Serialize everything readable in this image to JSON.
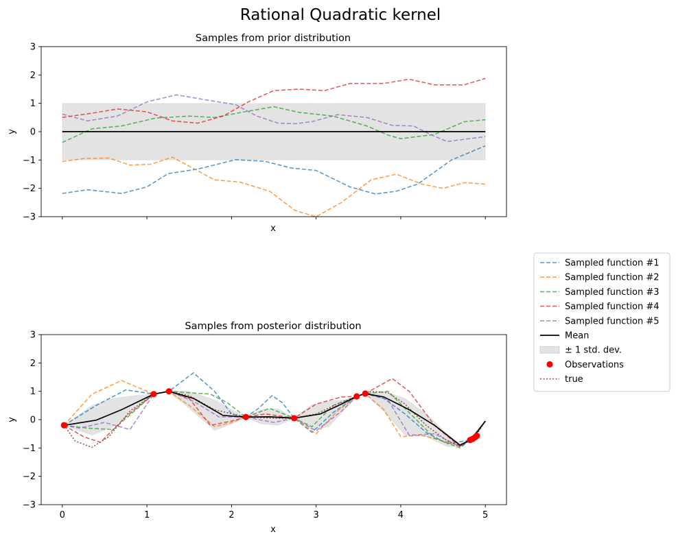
{
  "figure": {
    "suptitle": "Rational Quadratic kernel"
  },
  "legend": {
    "placement": "right-middle",
    "entries": [
      {
        "label": "Sampled function #1",
        "kind": "dashed",
        "color": "#1f77b4"
      },
      {
        "label": "Sampled function #2",
        "kind": "dashed",
        "color": "#ff7f0e"
      },
      {
        "label": "Sampled function #3",
        "kind": "dashed",
        "color": "#2ca02c"
      },
      {
        "label": "Sampled function #4",
        "kind": "dashed",
        "color": "#d62728"
      },
      {
        "label": "Sampled function #5",
        "kind": "dashed",
        "color": "#9467bd"
      },
      {
        "label": "Mean",
        "kind": "solid",
        "color": "#000000"
      },
      {
        "label": "± 1 std. dev.",
        "kind": "band",
        "color": "#bbbbbb"
      },
      {
        "label": "Observations",
        "kind": "dot",
        "color": "#ff0000"
      },
      {
        "label": "true",
        "kind": "dotted",
        "color": "#8c564b"
      }
    ]
  },
  "chart_data": [
    {
      "type": "line",
      "title": "Samples from prior distribution",
      "xlabel": "x",
      "ylabel": "y",
      "xlim": [
        -0.25,
        5.25
      ],
      "ylim": [
        -3,
        3
      ],
      "xticks": [
        0,
        1,
        2,
        3,
        4,
        5
      ],
      "xticklabels_visible": false,
      "yticks": [
        -3,
        -2,
        -1,
        0,
        1,
        2,
        3
      ],
      "grid": false,
      "mean": {
        "x": [
          0,
          5
        ],
        "y": [
          0,
          0
        ]
      },
      "std_band": {
        "x": [
          0,
          5
        ],
        "lower": [
          -1,
          -1
        ],
        "upper": [
          1,
          1
        ]
      },
      "series": [
        {
          "name": "Sampled function #1",
          "color": "#1f77b4",
          "x": [
            0,
            0.3,
            0.7,
            1.0,
            1.25,
            1.6,
            2.05,
            2.4,
            2.7,
            3.0,
            3.4,
            3.7,
            3.95,
            4.2,
            4.6,
            5.0
          ],
          "y": [
            -2.18,
            -2.05,
            -2.18,
            -1.95,
            -1.48,
            -1.32,
            -0.99,
            -1.05,
            -1.28,
            -1.37,
            -1.95,
            -2.2,
            -2.1,
            -1.85,
            -1.0,
            -0.5
          ]
        },
        {
          "name": "Sampled function #2",
          "color": "#ff7f0e",
          "x": [
            0,
            0.25,
            0.55,
            0.8,
            1.05,
            1.3,
            1.55,
            1.8,
            2.1,
            2.45,
            2.75,
            3.0,
            3.3,
            3.65,
            3.95,
            4.25,
            4.5,
            4.75,
            5.0
          ],
          "y": [
            -1.05,
            -0.95,
            -0.93,
            -1.18,
            -1.15,
            -0.9,
            -1.3,
            -1.7,
            -1.78,
            -2.1,
            -2.78,
            -3.0,
            -2.5,
            -1.7,
            -1.5,
            -1.85,
            -2.0,
            -1.8,
            -1.85
          ]
        },
        {
          "name": "Sampled function #3",
          "color": "#2ca02c",
          "x": [
            0,
            0.35,
            0.7,
            1.1,
            1.5,
            1.8,
            2.15,
            2.5,
            2.8,
            3.2,
            3.6,
            3.85,
            4.0,
            4.4,
            4.75,
            5.0
          ],
          "y": [
            -0.38,
            0.1,
            0.2,
            0.48,
            0.55,
            0.5,
            0.7,
            0.88,
            0.68,
            0.55,
            0.2,
            -0.12,
            -0.25,
            -0.1,
            0.35,
            0.42
          ]
        },
        {
          "name": "Sampled function #4",
          "color": "#d62728",
          "x": [
            0,
            0.35,
            0.65,
            1.0,
            1.3,
            1.6,
            1.9,
            2.2,
            2.5,
            2.8,
            3.1,
            3.4,
            3.8,
            4.1,
            4.4,
            4.75,
            5.0
          ],
          "y": [
            0.5,
            0.65,
            0.8,
            0.7,
            0.38,
            0.3,
            0.55,
            1.05,
            1.45,
            1.5,
            1.45,
            1.7,
            1.7,
            1.85,
            1.65,
            1.65,
            1.88
          ]
        },
        {
          "name": "Sampled function #5",
          "color": "#9467bd",
          "x": [
            0,
            0.3,
            0.65,
            1.0,
            1.35,
            1.7,
            2.05,
            2.3,
            2.55,
            2.75,
            2.95,
            3.25,
            3.6,
            3.9,
            4.15,
            4.35,
            4.55,
            4.8,
            5.0
          ],
          "y": [
            0.62,
            0.38,
            0.55,
            1.05,
            1.3,
            1.12,
            0.95,
            0.55,
            0.3,
            0.28,
            0.35,
            0.6,
            0.5,
            0.22,
            0.2,
            -0.1,
            -0.35,
            -0.25,
            -0.18
          ]
        }
      ]
    },
    {
      "type": "line",
      "title": "Samples from posterior distribution",
      "xlabel": "x",
      "ylabel": "y",
      "xlim": [
        -0.25,
        5.25
      ],
      "ylim": [
        -3,
        3
      ],
      "xticks": [
        0,
        1,
        2,
        3,
        4,
        5
      ],
      "xticklabels_visible": true,
      "yticks": [
        -3,
        -2,
        -1,
        0,
        1,
        2,
        3
      ],
      "grid": false,
      "mean": {
        "x": [
          0.02,
          0.4,
          0.7,
          1.08,
          1.26,
          1.55,
          1.9,
          2.17,
          2.45,
          2.74,
          3.05,
          3.3,
          3.48,
          3.58,
          3.8,
          4.1,
          4.4,
          4.7,
          4.82,
          4.9,
          5.0
        ],
        "y": [
          -0.2,
          -0.02,
          0.35,
          0.9,
          1.0,
          0.75,
          0.15,
          0.09,
          0.1,
          0.05,
          0.2,
          0.55,
          0.82,
          0.92,
          0.8,
          0.35,
          -0.2,
          -0.9,
          -0.72,
          -0.45,
          -0.05
        ]
      },
      "std_band": {
        "x": [
          0.02,
          0.35,
          0.6,
          0.85,
          1.08,
          1.26,
          1.5,
          1.8,
          2.0,
          2.17,
          2.35,
          2.55,
          2.74,
          2.95,
          3.15,
          3.35,
          3.48,
          3.58,
          3.8,
          4.05,
          4.3,
          4.55,
          4.7,
          4.82,
          4.9,
          5.0
        ],
        "lower": [
          -0.2,
          -0.55,
          -0.25,
          0.35,
          0.9,
          0.97,
          0.4,
          -0.38,
          -0.15,
          0.08,
          -0.15,
          -0.2,
          0.04,
          -0.35,
          -0.25,
          0.4,
          0.8,
          0.9,
          0.3,
          -0.55,
          -0.6,
          -0.95,
          -0.95,
          -0.73,
          -0.6,
          -0.05
        ],
        "upper": [
          -0.2,
          0.5,
          0.75,
          0.85,
          0.9,
          1.03,
          1.0,
          0.7,
          0.35,
          0.1,
          0.35,
          0.38,
          0.06,
          0.52,
          0.65,
          0.7,
          0.84,
          0.94,
          1.0,
          0.75,
          0.2,
          -0.5,
          -0.85,
          -0.71,
          -0.55,
          -0.05
        ]
      },
      "observations": {
        "x": [
          0.02,
          1.08,
          1.26,
          2.17,
          2.74,
          3.48,
          3.58,
          4.82,
          4.85,
          4.88,
          4.9
        ],
        "y": [
          -0.2,
          0.9,
          1.0,
          0.09,
          0.05,
          0.82,
          0.92,
          -0.72,
          -0.68,
          -0.62,
          -0.57
        ]
      },
      "true": {
        "x": [
          0,
          0.15,
          0.35,
          0.55,
          0.8,
          1.08,
          1.26,
          1.5,
          1.8,
          2.17,
          2.5,
          2.74,
          3.0,
          3.25,
          3.48,
          3.65,
          3.85,
          4.05,
          4.3,
          4.55,
          4.7,
          4.82,
          4.9,
          5.0
        ],
        "y": [
          -0.1,
          -0.75,
          -0.98,
          -0.6,
          0.3,
          0.9,
          1.0,
          0.85,
          0.35,
          0.09,
          0.05,
          0.05,
          0.2,
          0.55,
          0.82,
          1.0,
          0.95,
          0.55,
          -0.2,
          -0.75,
          -0.95,
          -0.72,
          -0.5,
          -0.05
        ]
      },
      "series": [
        {
          "name": "Sampled function #1",
          "color": "#1f77b4",
          "x": [
            0.02,
            0.4,
            0.75,
            1.08,
            1.26,
            1.55,
            1.8,
            2.0,
            2.17,
            2.32,
            2.48,
            2.6,
            2.74,
            2.95,
            3.2,
            3.48,
            3.58,
            3.8,
            4.05,
            4.3,
            4.55,
            4.82,
            5.0
          ],
          "y": [
            -0.2,
            0.5,
            1.05,
            0.9,
            1.0,
            1.65,
            1.0,
            0.2,
            0.09,
            0.4,
            0.85,
            0.6,
            0.05,
            -0.45,
            0.25,
            0.82,
            0.92,
            0.75,
            0.2,
            -0.45,
            -0.85,
            -0.72,
            -0.05
          ]
        },
        {
          "name": "Sampled function #2",
          "color": "#ff7f0e",
          "x": [
            0.02,
            0.35,
            0.7,
            1.08,
            1.26,
            1.5,
            1.8,
            2.0,
            2.17,
            2.4,
            2.74,
            3.0,
            3.25,
            3.48,
            3.58,
            3.8,
            4.0,
            4.25,
            4.5,
            4.7,
            4.82,
            5.0
          ],
          "y": [
            -0.2,
            0.9,
            1.38,
            0.9,
            1.0,
            0.5,
            -0.25,
            -0.1,
            0.09,
            0.1,
            0.05,
            -0.5,
            0.3,
            0.82,
            0.92,
            0.35,
            -0.6,
            -0.55,
            -0.75,
            -0.9,
            -0.72,
            -0.05
          ]
        },
        {
          "name": "Sampled function #3",
          "color": "#2ca02c",
          "x": [
            0.02,
            0.3,
            0.6,
            0.85,
            1.08,
            1.26,
            1.5,
            1.75,
            1.95,
            2.17,
            2.45,
            2.74,
            2.95,
            3.2,
            3.48,
            3.58,
            3.85,
            4.1,
            4.4,
            4.7,
            4.82,
            5.0
          ],
          "y": [
            -0.2,
            -0.3,
            -0.35,
            0.3,
            0.9,
            1.0,
            0.95,
            0.9,
            0.6,
            0.09,
            0.4,
            0.05,
            -0.25,
            0.5,
            0.82,
            0.92,
            1.0,
            0.25,
            -0.65,
            -1.0,
            -0.72,
            -0.05
          ]
        },
        {
          "name": "Sampled function #4",
          "color": "#d62728",
          "x": [
            0.02,
            0.25,
            0.45,
            0.75,
            1.08,
            1.26,
            1.5,
            1.75,
            2.0,
            2.17,
            2.4,
            2.74,
            3.0,
            3.3,
            3.48,
            3.58,
            3.9,
            4.1,
            4.4,
            4.7,
            4.82,
            5.0
          ],
          "y": [
            -0.2,
            -0.6,
            -0.8,
            0.1,
            0.9,
            1.0,
            0.75,
            -0.2,
            -0.05,
            0.09,
            0.2,
            0.05,
            0.55,
            0.8,
            0.82,
            0.92,
            1.45,
            1.0,
            -0.2,
            -0.95,
            -0.72,
            -0.05
          ]
        },
        {
          "name": "Sampled function #5",
          "color": "#9467bd",
          "x": [
            0.02,
            0.2,
            0.5,
            0.8,
            1.08,
            1.26,
            1.55,
            1.85,
            2.17,
            2.5,
            2.74,
            3.0,
            3.3,
            3.48,
            3.58,
            3.85,
            4.1,
            4.4,
            4.7,
            4.82,
            5.0
          ],
          "y": [
            -0.2,
            -0.3,
            -0.1,
            -0.35,
            0.9,
            1.0,
            0.65,
            0.1,
            0.09,
            -0.1,
            0.05,
            -0.4,
            0.3,
            0.82,
            0.92,
            0.7,
            -0.55,
            -0.5,
            -0.95,
            -0.72,
            -0.05
          ]
        }
      ]
    }
  ]
}
